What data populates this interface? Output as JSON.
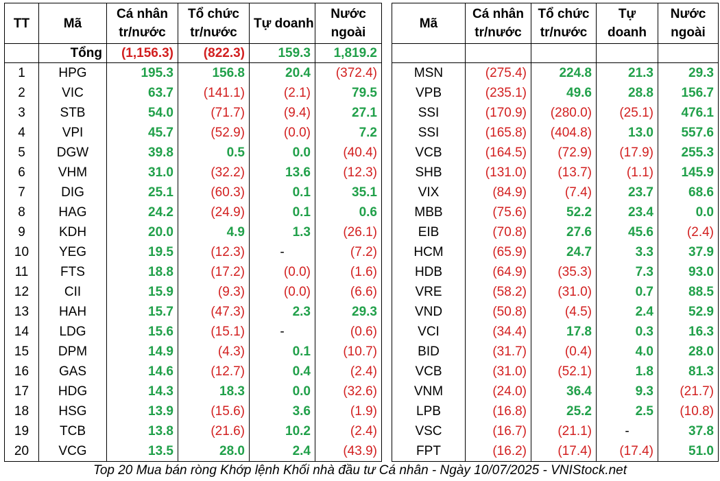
{
  "headers_left": {
    "tt": "TT",
    "ma": "Mã",
    "ca_nhan": [
      "Cá nhân",
      "tr/nước"
    ],
    "to_chuc": [
      "Tổ chức",
      "tr/nước"
    ],
    "tu_doanh": [
      "Tự doanh"
    ],
    "nuoc_ngoai": [
      "Nước",
      "ngoài"
    ]
  },
  "headers_right": {
    "ma": "Mã",
    "ca_nhan": [
      "Cá nhân",
      "tr/nước"
    ],
    "to_chuc": [
      "Tổ chức",
      "tr/nước"
    ],
    "tu_doanh": [
      "Tự",
      "doanh"
    ],
    "nuoc_ngoai": [
      "Nước",
      "ngoài"
    ]
  },
  "total": {
    "label": "Tổng",
    "ca_nhan": "(1,156.3)",
    "to_chuc": "(822.3)",
    "tu_doanh": "159.3",
    "nuoc_ngoai": "1,819.2"
  },
  "left_rows": [
    {
      "tt": "1",
      "ma": "HPG",
      "ca_nhan": "195.3",
      "to_chuc": "156.8",
      "tu_doanh": "20.4",
      "nuoc_ngoai": "(372.4)"
    },
    {
      "tt": "2",
      "ma": "VIC",
      "ca_nhan": "63.7",
      "to_chuc": "(141.1)",
      "tu_doanh": "(2.1)",
      "nuoc_ngoai": "79.5"
    },
    {
      "tt": "3",
      "ma": "STB",
      "ca_nhan": "54.0",
      "to_chuc": "(71.7)",
      "tu_doanh": "(9.4)",
      "nuoc_ngoai": "27.1"
    },
    {
      "tt": "4",
      "ma": "VPI",
      "ca_nhan": "45.7",
      "to_chuc": "(52.9)",
      "tu_doanh": "(0.0)",
      "nuoc_ngoai": "7.2"
    },
    {
      "tt": "5",
      "ma": "DGW",
      "ca_nhan": "39.8",
      "to_chuc": "0.5",
      "tu_doanh": "0.0",
      "nuoc_ngoai": "(40.4)"
    },
    {
      "tt": "6",
      "ma": "VHM",
      "ca_nhan": "31.0",
      "to_chuc": "(32.2)",
      "tu_doanh": "13.6",
      "nuoc_ngoai": "(12.3)"
    },
    {
      "tt": "7",
      "ma": "DIG",
      "ca_nhan": "25.1",
      "to_chuc": "(60.3)",
      "tu_doanh": "0.1",
      "nuoc_ngoai": "35.1"
    },
    {
      "tt": "8",
      "ma": "HAG",
      "ca_nhan": "24.2",
      "to_chuc": "(24.9)",
      "tu_doanh": "0.1",
      "nuoc_ngoai": "0.6"
    },
    {
      "tt": "9",
      "ma": "KDH",
      "ca_nhan": "20.0",
      "to_chuc": "4.9",
      "tu_doanh": "1.3",
      "nuoc_ngoai": "(26.1)"
    },
    {
      "tt": "10",
      "ma": "YEG",
      "ca_nhan": "19.5",
      "to_chuc": "(12.3)",
      "tu_doanh": "-",
      "nuoc_ngoai": "(7.2)"
    },
    {
      "tt": "11",
      "ma": "FTS",
      "ca_nhan": "18.8",
      "to_chuc": "(17.2)",
      "tu_doanh": "(0.0)",
      "nuoc_ngoai": "(1.6)"
    },
    {
      "tt": "12",
      "ma": "CII",
      "ca_nhan": "15.9",
      "to_chuc": "(9.3)",
      "tu_doanh": "(0.0)",
      "nuoc_ngoai": "(6.6)"
    },
    {
      "tt": "13",
      "ma": "HAH",
      "ca_nhan": "15.7",
      "to_chuc": "(47.3)",
      "tu_doanh": "2.3",
      "nuoc_ngoai": "29.3"
    },
    {
      "tt": "14",
      "ma": "LDG",
      "ca_nhan": "15.6",
      "to_chuc": "(15.1)",
      "tu_doanh": "-",
      "nuoc_ngoai": "(0.6)"
    },
    {
      "tt": "15",
      "ma": "DPM",
      "ca_nhan": "14.9",
      "to_chuc": "(4.3)",
      "tu_doanh": "0.1",
      "nuoc_ngoai": "(10.7)"
    },
    {
      "tt": "16",
      "ma": "GAS",
      "ca_nhan": "14.6",
      "to_chuc": "(12.7)",
      "tu_doanh": "0.4",
      "nuoc_ngoai": "(2.4)"
    },
    {
      "tt": "17",
      "ma": "HDG",
      "ca_nhan": "14.3",
      "to_chuc": "18.3",
      "tu_doanh": "0.0",
      "nuoc_ngoai": "(32.6)"
    },
    {
      "tt": "18",
      "ma": "HSG",
      "ca_nhan": "13.9",
      "to_chuc": "(15.6)",
      "tu_doanh": "3.6",
      "nuoc_ngoai": "(1.9)"
    },
    {
      "tt": "19",
      "ma": "TCB",
      "ca_nhan": "13.8",
      "to_chuc": "(21.6)",
      "tu_doanh": "10.2",
      "nuoc_ngoai": "(2.4)"
    },
    {
      "tt": "20",
      "ma": "VCG",
      "ca_nhan": "13.5",
      "to_chuc": "28.0",
      "tu_doanh": "2.4",
      "nuoc_ngoai": "(43.9)"
    }
  ],
  "right_rows": [
    {
      "ma": "MSN",
      "ca_nhan": "(275.4)",
      "to_chuc": "224.8",
      "tu_doanh": "21.3",
      "nuoc_ngoai": "29.3"
    },
    {
      "ma": "VPB",
      "ca_nhan": "(235.1)",
      "to_chuc": "49.6",
      "tu_doanh": "28.8",
      "nuoc_ngoai": "156.7"
    },
    {
      "ma": "SSI",
      "ca_nhan": "(170.9)",
      "to_chuc": "(280.0)",
      "tu_doanh": "(25.1)",
      "nuoc_ngoai": "476.1"
    },
    {
      "ma": "SSI",
      "ca_nhan": "(165.8)",
      "to_chuc": "(404.8)",
      "tu_doanh": "13.0",
      "nuoc_ngoai": "557.6"
    },
    {
      "ma": "VCB",
      "ca_nhan": "(164.5)",
      "to_chuc": "(72.9)",
      "tu_doanh": "(17.9)",
      "nuoc_ngoai": "255.3"
    },
    {
      "ma": "SHB",
      "ca_nhan": "(131.0)",
      "to_chuc": "(13.7)",
      "tu_doanh": "(1.1)",
      "nuoc_ngoai": "145.9"
    },
    {
      "ma": "VIX",
      "ca_nhan": "(84.9)",
      "to_chuc": "(7.4)",
      "tu_doanh": "23.7",
      "nuoc_ngoai": "68.6"
    },
    {
      "ma": "MBB",
      "ca_nhan": "(75.6)",
      "to_chuc": "52.2",
      "tu_doanh": "23.4",
      "nuoc_ngoai": "0.0"
    },
    {
      "ma": "EIB",
      "ca_nhan": "(70.8)",
      "to_chuc": "27.6",
      "tu_doanh": "45.6",
      "nuoc_ngoai": "(2.4)"
    },
    {
      "ma": "HCM",
      "ca_nhan": "(65.9)",
      "to_chuc": "24.7",
      "tu_doanh": "3.3",
      "nuoc_ngoai": "37.9"
    },
    {
      "ma": "HDB",
      "ca_nhan": "(64.9)",
      "to_chuc": "(35.3)",
      "tu_doanh": "7.3",
      "nuoc_ngoai": "93.0"
    },
    {
      "ma": "VRE",
      "ca_nhan": "(58.2)",
      "to_chuc": "(31.0)",
      "tu_doanh": "0.7",
      "nuoc_ngoai": "88.5"
    },
    {
      "ma": "VND",
      "ca_nhan": "(50.8)",
      "to_chuc": "(4.5)",
      "tu_doanh": "2.4",
      "nuoc_ngoai": "52.9"
    },
    {
      "ma": "VCI",
      "ca_nhan": "(34.4)",
      "to_chuc": "17.8",
      "tu_doanh": "0.3",
      "nuoc_ngoai": "16.3"
    },
    {
      "ma": "BID",
      "ca_nhan": "(31.7)",
      "to_chuc": "(0.4)",
      "tu_doanh": "4.0",
      "nuoc_ngoai": "28.0"
    },
    {
      "ma": "VCB",
      "ca_nhan": "(31.0)",
      "to_chuc": "(52.1)",
      "tu_doanh": "1.8",
      "nuoc_ngoai": "81.3"
    },
    {
      "ma": "VNM",
      "ca_nhan": "(24.0)",
      "to_chuc": "36.4",
      "tu_doanh": "9.3",
      "nuoc_ngoai": "(21.7)"
    },
    {
      "ma": "LPB",
      "ca_nhan": "(16.8)",
      "to_chuc": "25.2",
      "tu_doanh": "2.5",
      "nuoc_ngoai": "(10.8)"
    },
    {
      "ma": "VSC",
      "ca_nhan": "(16.7)",
      "to_chuc": "(21.1)",
      "tu_doanh": "-",
      "nuoc_ngoai": "37.8"
    },
    {
      "ma": "FPT",
      "ca_nhan": "(16.2)",
      "to_chuc": "(17.4)",
      "tu_doanh": "(17.4)",
      "nuoc_ngoai": "51.0"
    }
  ],
  "caption": "Top 20 Mua bán ròng Khớp lệnh Khối nhà đầu tư Cá nhân - Ngày 10/07/2025 - VNIStock.net",
  "colors": {
    "positive": "#21a04a",
    "negative": "#d21f1f"
  }
}
